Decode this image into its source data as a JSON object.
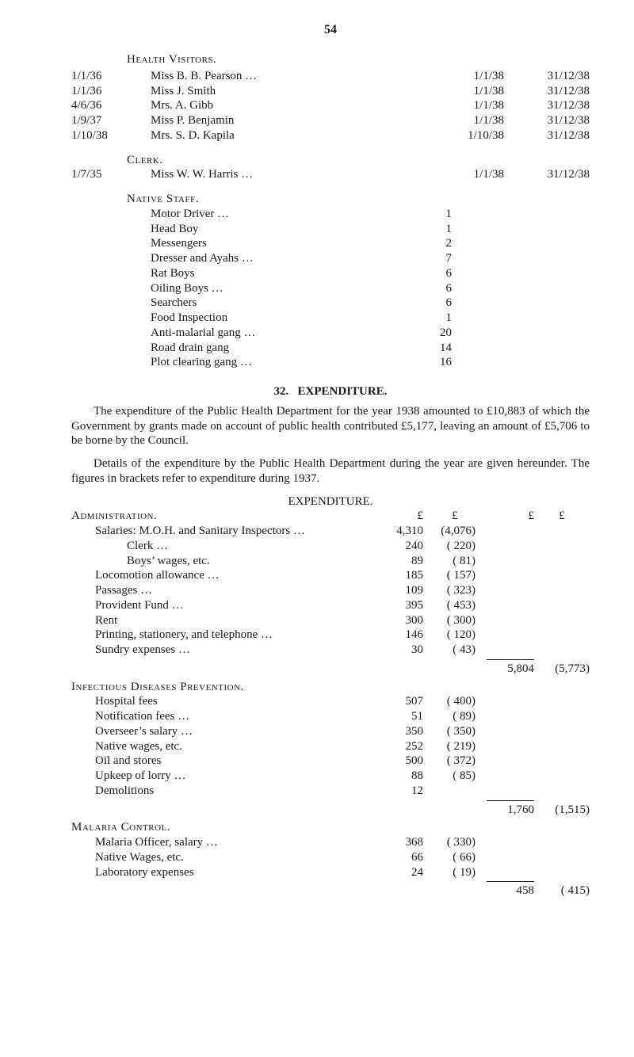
{
  "page_number": "54",
  "health_visitors_heading": "Health Visitors.",
  "health_visitors": [
    {
      "start": "1/1/36",
      "name": "Miss B. B. Pearson …",
      "d2": "1/1/38",
      "d3": "31/12/38"
    },
    {
      "start": "1/1/36",
      "name": "Miss J. Smith",
      "d2": "1/1/38",
      "d3": "31/12/38"
    },
    {
      "start": "4/6/36",
      "name": "Mrs. A. Gibb",
      "d2": "1/1/38",
      "d3": "31/12/38"
    },
    {
      "start": "1/9/37",
      "name": "Miss P. Benjamin",
      "d2": "1/1/38",
      "d3": "31/12/38"
    },
    {
      "start": "1/10/38",
      "name": "Mrs. S. D. Kapila",
      "d2": "1/10/38",
      "d3": "31/12/38"
    }
  ],
  "clerk_heading": "Clerk.",
  "clerk": {
    "start": "1/7/35",
    "name": "Miss W. W. Harris …",
    "d2": "1/1/38",
    "d3": "31/12/38"
  },
  "native_staff_heading": "Native Staff.",
  "native_staff": [
    {
      "label": "Motor Driver …",
      "val": "1"
    },
    {
      "label": "Head Boy",
      "val": "1"
    },
    {
      "label": "Messengers",
      "val": "2"
    },
    {
      "label": "Dresser and Ayahs …",
      "val": "7"
    },
    {
      "label": "Rat Boys",
      "val": "6"
    },
    {
      "label": "Oiling Boys …",
      "val": "6"
    },
    {
      "label": "Searchers",
      "val": "6"
    },
    {
      "label": "Food Inspection",
      "val": "1"
    },
    {
      "label": "Anti-malarial gang …",
      "val": "20"
    },
    {
      "label": "Road drain gang",
      "val": "14"
    },
    {
      "label": "Plot clearing gang …",
      "val": "16"
    }
  ],
  "exp_section_num": "32.",
  "exp_section_title": "EXPENDITURE.",
  "para1": "The expenditure of the Public Health Department for the year 1938 amounted to £10,883 of which the Government by grants made on account of public health contributed £5,177, leaving an amount of £5,706 to be borne by the Council.",
  "para2": "Details of the expenditure by the Public Health Department during the year are given hereunder. The figures in brackets refer to expenditure during 1937.",
  "exp_heading": "EXPENDITURE.",
  "pound": "£",
  "admin_heading": "Administration.",
  "admin_rows": [
    {
      "label": "Salaries: M.O.H. and Sanitary Inspectors …",
      "c1": "4,310",
      "c2": "(4,076)",
      "sub": false
    },
    {
      "label": "Clerk …",
      "c1": "240",
      "c2": "( 220)",
      "sub": true
    },
    {
      "label": "Boys’ wages, etc.",
      "c1": "89",
      "c2": "( 81)",
      "sub": true
    },
    {
      "label": "Locomotion allowance …",
      "c1": "185",
      "c2": "( 157)",
      "sub": false
    },
    {
      "label": "Passages …",
      "c1": "109",
      "c2": "( 323)",
      "sub": false
    },
    {
      "label": "Provident Fund …",
      "c1": "395",
      "c2": "( 453)",
      "sub": false
    },
    {
      "label": "Rent",
      "c1": "300",
      "c2": "( 300)",
      "sub": false
    },
    {
      "label": "Printing, stationery, and telephone …",
      "c1": "146",
      "c2": "( 120)",
      "sub": false
    },
    {
      "label": "Sundry expenses …",
      "c1": "30",
      "c2": "( 43)",
      "sub": false
    }
  ],
  "admin_total": {
    "c3": "5,804",
    "c4": "(5,773)"
  },
  "idp_heading": "Infectious Diseases Prevention.",
  "idp_rows": [
    {
      "label": "Hospital fees",
      "c1": "507",
      "c2": "( 400)"
    },
    {
      "label": "Notification fees …",
      "c1": "51",
      "c2": "( 89)"
    },
    {
      "label": "Overseer’s salary …",
      "c1": "350",
      "c2": "( 350)"
    },
    {
      "label": "Native wages, etc.",
      "c1": "252",
      "c2": "( 219)"
    },
    {
      "label": "Oil and stores",
      "c1": "500",
      "c2": "( 372)"
    },
    {
      "label": "Upkeep of lorry …",
      "c1": "88",
      "c2": "( 85)"
    },
    {
      "label": "Demolitions",
      "c1": "12",
      "c2": ""
    }
  ],
  "idp_total": {
    "c3": "1,760",
    "c4": "(1,515)"
  },
  "mal_heading": "Malaria Control.",
  "mal_rows": [
    {
      "label": "Malaria Officer, salary …",
      "c1": "368",
      "c2": "( 330)"
    },
    {
      "label": "Native Wages, etc.",
      "c1": "66",
      "c2": "( 66)"
    },
    {
      "label": "Laboratory expenses",
      "c1": "24",
      "c2": "( 19)"
    }
  ],
  "mal_total": {
    "c3": "458",
    "c4": "( 415)"
  }
}
